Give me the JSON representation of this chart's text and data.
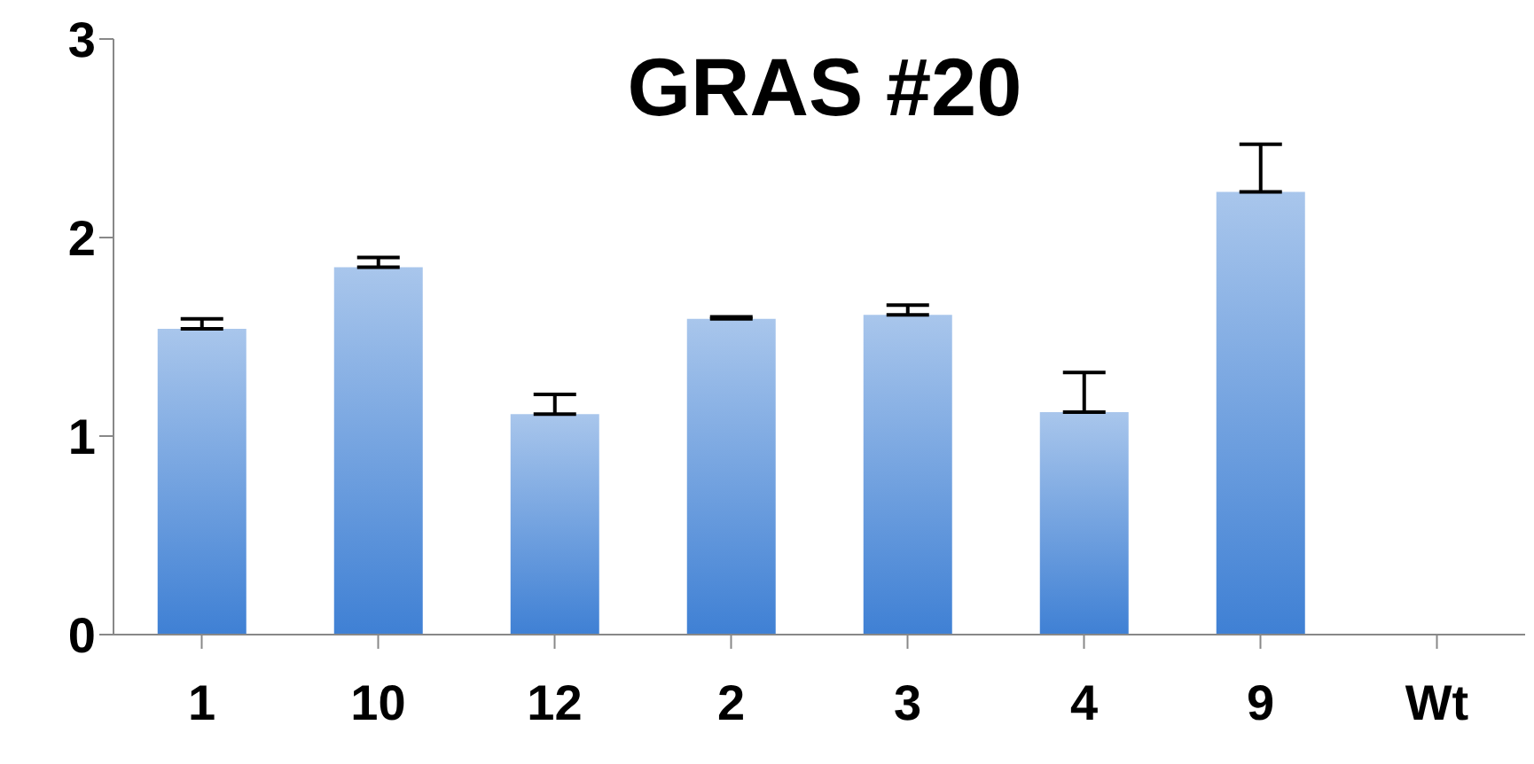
{
  "chart_data": {
    "type": "bar",
    "title": "GRAS #20",
    "categories": [
      "1",
      "10",
      "12",
      "2",
      "3",
      "4",
      "9",
      "Wt"
    ],
    "values": [
      1.54,
      1.85,
      1.11,
      1.59,
      1.61,
      1.12,
      2.23,
      null
    ],
    "errors": [
      [
        1.54,
        1.59
      ],
      [
        1.85,
        1.9
      ],
      [
        1.11,
        1.21
      ],
      [
        1.59,
        1.6
      ],
      [
        1.61,
        1.66
      ],
      [
        1.12,
        1.32
      ],
      [
        2.23,
        2.47
      ],
      null
    ],
    "color": "#3f80d4",
    "ylim": [
      0,
      3
    ],
    "yticks": [
      0,
      1,
      2,
      3
    ]
  }
}
